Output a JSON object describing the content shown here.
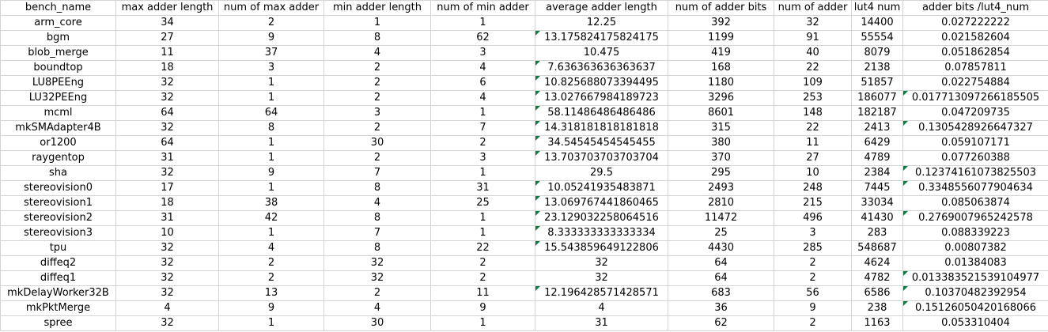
{
  "columns": [
    "bench_name",
    "max adder length",
    "num of max adder",
    "min adder length",
    "num of min adder",
    "average adder length",
    "num of adder bits",
    "num of adder",
    "lut4 num",
    "adder bits /lut4_num"
  ],
  "rows": [
    {
      "cells": [
        "arm_core",
        "34",
        "2",
        "1",
        "1",
        "12.25",
        "392",
        "32",
        "14400",
        "0.027222222"
      ],
      "flags": [
        false,
        false,
        false,
        false,
        false,
        false,
        false,
        false,
        false,
        false
      ]
    },
    {
      "cells": [
        "bgm",
        "27",
        "9",
        "8",
        "62",
        "13.175824175824175",
        "1199",
        "91",
        "55554",
        "0.021582604"
      ],
      "flags": [
        false,
        false,
        false,
        false,
        false,
        true,
        false,
        false,
        false,
        false
      ]
    },
    {
      "cells": [
        "blob_merge",
        "11",
        "37",
        "4",
        "3",
        "10.475",
        "419",
        "40",
        "8079",
        "0.051862854"
      ],
      "flags": [
        false,
        false,
        false,
        false,
        false,
        false,
        false,
        false,
        false,
        false
      ]
    },
    {
      "cells": [
        "boundtop",
        "18",
        "3",
        "2",
        "4",
        "7.636363636363637",
        "168",
        "22",
        "2138",
        "0.07857811"
      ],
      "flags": [
        false,
        false,
        false,
        false,
        false,
        true,
        false,
        false,
        false,
        false
      ]
    },
    {
      "cells": [
        "LU8PEEng",
        "32",
        "1",
        "2",
        "6",
        "10.825688073394495",
        "1180",
        "109",
        "51857",
        "0.022754884"
      ],
      "flags": [
        false,
        false,
        false,
        false,
        false,
        true,
        false,
        false,
        false,
        false
      ]
    },
    {
      "cells": [
        "LU32PEEng",
        "32",
        "1",
        "2",
        "4",
        "13.027667984189723",
        "3296",
        "253",
        "186077",
        "0.017713097266185505"
      ],
      "flags": [
        false,
        false,
        false,
        false,
        false,
        true,
        false,
        false,
        false,
        true
      ]
    },
    {
      "cells": [
        "mcml",
        "64",
        "64",
        "3",
        "1",
        "58.11486486486486",
        "8601",
        "148",
        "182187",
        "0.047209735"
      ],
      "flags": [
        false,
        false,
        false,
        false,
        false,
        true,
        false,
        false,
        false,
        false
      ]
    },
    {
      "cells": [
        "mkSMAdapter4B",
        "32",
        "8",
        "2",
        "7",
        "14.318181818181818",
        "315",
        "22",
        "2413",
        "0.1305428926647327"
      ],
      "flags": [
        false,
        false,
        false,
        false,
        false,
        true,
        false,
        false,
        false,
        true
      ]
    },
    {
      "cells": [
        "or1200",
        "64",
        "1",
        "30",
        "2",
        "34.54545454545455",
        "380",
        "11",
        "6429",
        "0.059107171"
      ],
      "flags": [
        false,
        false,
        false,
        false,
        false,
        true,
        false,
        false,
        false,
        false
      ]
    },
    {
      "cells": [
        "raygentop",
        "31",
        "1",
        "2",
        "3",
        "13.703703703703704",
        "370",
        "27",
        "4789",
        "0.077260388"
      ],
      "flags": [
        false,
        false,
        false,
        false,
        false,
        true,
        false,
        false,
        false,
        false
      ]
    },
    {
      "cells": [
        "sha",
        "32",
        "9",
        "7",
        "1",
        "29.5",
        "295",
        "10",
        "2384",
        "0.12374161073825503"
      ],
      "flags": [
        false,
        false,
        false,
        false,
        false,
        false,
        false,
        false,
        false,
        true
      ]
    },
    {
      "cells": [
        "stereovision0",
        "17",
        "1",
        "8",
        "31",
        "10.05241935483871",
        "2493",
        "248",
        "7445",
        "0.3348556077904634"
      ],
      "flags": [
        false,
        false,
        false,
        false,
        false,
        true,
        false,
        false,
        false,
        true
      ]
    },
    {
      "cells": [
        "stereovision1",
        "18",
        "38",
        "4",
        "25",
        "13.069767441860465",
        "2810",
        "215",
        "33034",
        "0.085063874"
      ],
      "flags": [
        false,
        false,
        false,
        false,
        false,
        true,
        false,
        false,
        false,
        false
      ]
    },
    {
      "cells": [
        "stereovision2",
        "31",
        "42",
        "8",
        "1",
        "23.129032258064516",
        "11472",
        "496",
        "41430",
        "0.2769007965242578"
      ],
      "flags": [
        false,
        false,
        false,
        false,
        false,
        true,
        false,
        false,
        false,
        true
      ]
    },
    {
      "cells": [
        "stereovision3",
        "10",
        "1",
        "7",
        "1",
        "8.333333333333334",
        "25",
        "3",
        "283",
        "0.088339223"
      ],
      "flags": [
        false,
        false,
        false,
        false,
        false,
        true,
        false,
        false,
        false,
        false
      ]
    },
    {
      "cells": [
        "tpu",
        "32",
        "4",
        "8",
        "22",
        "15.543859649122806",
        "4430",
        "285",
        "548687",
        "0.00807382"
      ],
      "flags": [
        false,
        false,
        false,
        false,
        false,
        true,
        false,
        false,
        false,
        false
      ]
    },
    {
      "cells": [
        "diffeq2",
        "32",
        "2",
        "32",
        "2",
        "32",
        "64",
        "2",
        "4624",
        "0.01384083"
      ],
      "flags": [
        false,
        false,
        false,
        false,
        false,
        false,
        false,
        false,
        false,
        false
      ]
    },
    {
      "cells": [
        "diffeq1",
        "32",
        "2",
        "32",
        "2",
        "32",
        "64",
        "2",
        "4782",
        "0.013383521539104977"
      ],
      "flags": [
        false,
        false,
        false,
        false,
        false,
        false,
        false,
        false,
        false,
        true
      ]
    },
    {
      "cells": [
        "mkDelayWorker32B",
        "32",
        "13",
        "2",
        "11",
        "12.196428571428571",
        "683",
        "56",
        "6586",
        "0.10370482392954"
      ],
      "flags": [
        false,
        false,
        false,
        false,
        false,
        true,
        false,
        false,
        false,
        true
      ]
    },
    {
      "cells": [
        "mkPktMerge",
        "4",
        "9",
        "4",
        "9",
        "4",
        "36",
        "9",
        "238",
        "0.15126050420168066"
      ],
      "flags": [
        false,
        false,
        false,
        false,
        false,
        false,
        false,
        false,
        false,
        true
      ]
    },
    {
      "cells": [
        "spree",
        "32",
        "1",
        "30",
        "1",
        "31",
        "62",
        "2",
        "1163",
        "0.053310404"
      ],
      "flags": [
        false,
        false,
        false,
        false,
        false,
        false,
        false,
        false,
        false,
        false
      ]
    }
  ],
  "colors": {
    "gridline": "#d4d4d4",
    "error_marker": "#107c41",
    "text": "#000000",
    "background": "#ffffff"
  }
}
